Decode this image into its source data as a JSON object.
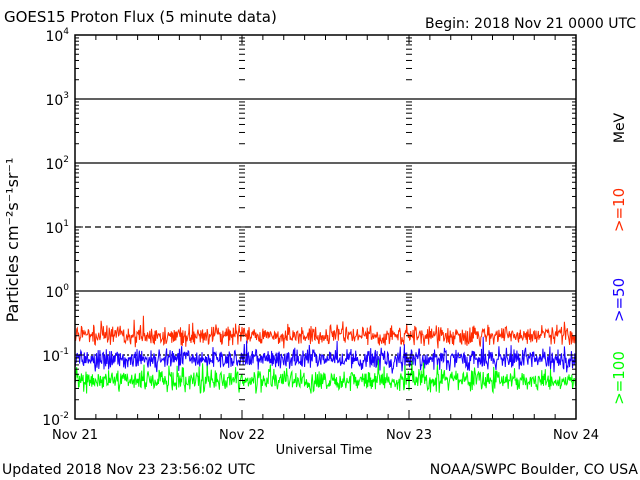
{
  "header": {
    "title": "GOES15 Proton Flux (5 minute data)",
    "begin": "Begin:  2018 Nov 21 0000 UTC"
  },
  "footer": {
    "updated": "Updated 2018 Nov 23 23:56:02 UTC",
    "credit": "NOAA/SWPC Boulder, CO USA"
  },
  "chart_data": {
    "type": "line",
    "title": "GOES15 Proton Flux (5 minute data)",
    "xlabel": "Universal Time",
    "ylabel": "Particles cm⁻²s⁻¹sr⁻¹",
    "y_scale": "log",
    "ylim": [
      0.01,
      10000
    ],
    "xlim": [
      "2018-11-21T00:00Z",
      "2018-11-24T00:00Z"
    ],
    "x_ticks": [
      "Nov 21",
      "Nov 22",
      "Nov 23",
      "Nov 24"
    ],
    "y_ticks": [
      {
        "base": "10",
        "exp": "-2"
      },
      {
        "base": "10",
        "exp": "-1"
      },
      {
        "base": "10",
        "exp": "0"
      },
      {
        "base": "10",
        "exp": "1"
      },
      {
        "base": "10",
        "exp": "2"
      },
      {
        "base": "10",
        "exp": "3"
      },
      {
        "base": "10",
        "exp": "4"
      }
    ],
    "y_minor_ticks": true,
    "x_minor_ticks_hours": 3,
    "grid": {
      "solid_levels": [
        1,
        100,
        1000,
        10000
      ],
      "dashed_levels": [
        10
      ],
      "short_dash_levels": [
        0.1
      ]
    },
    "legend_unit": "MeV",
    "legend_position": "right",
    "series": [
      {
        "name": ">=10",
        "color": "#ff2a00",
        "baseline": 0.2,
        "variability": 1.4,
        "range": [
          0.11,
          0.55
        ]
      },
      {
        "name": ">=50",
        "color": "#1a00ff",
        "baseline": 0.085,
        "variability": 1.45,
        "range": [
          0.05,
          0.21
        ]
      },
      {
        "name": ">=100",
        "color": "#00ff00",
        "baseline": 0.04,
        "variability": 1.45,
        "range": [
          0.025,
          0.1
        ]
      }
    ]
  }
}
